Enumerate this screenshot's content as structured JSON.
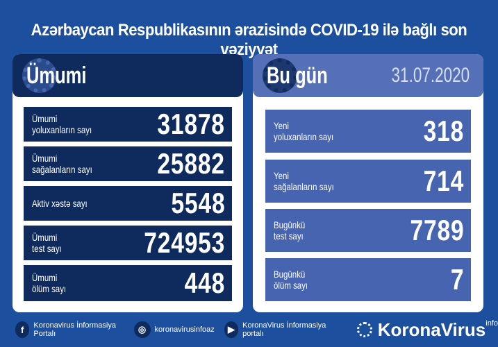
{
  "title": "Azərbaycan Respublikasının ərazisində COVID-19 ilə bağlı son vəziyyət",
  "total": {
    "heading": "Ümumi",
    "rows": [
      {
        "label": "Ümumi\nyoluxanların sayı",
        "value": "31878"
      },
      {
        "label": "Ümumi\nsağalanların sayı",
        "value": "25882"
      },
      {
        "label": "Aktiv xəstə sayı",
        "value": "5548"
      },
      {
        "label": "Ümumi\ntest sayı",
        "value": "724953"
      },
      {
        "label": "Ümumi\nölüm sayı",
        "value": "448"
      }
    ]
  },
  "today": {
    "heading": "Bu gün",
    "date": "31.07.2020",
    "rows": [
      {
        "label": "Yeni\nyoluxanların sayı",
        "value": "318"
      },
      {
        "label": "Yeni\nsağalanların sayı",
        "value": "714"
      },
      {
        "label": "Bugünkü\ntest sayı",
        "value": "7789"
      },
      {
        "label": "Bugünkü\nölüm sayı",
        "value": "7"
      }
    ]
  },
  "footer": {
    "facebook": "Koronavirus İnformasiya Portalı",
    "instagram": "koronavirusinfoaz",
    "youtube": "KoronaVirus İnformasiya portalı",
    "logo": "KoronaVirus",
    "logo_sup": "info"
  },
  "colors": {
    "background": "#1d4f9f",
    "dark": "#0f2a5c",
    "light": "#5670b8"
  }
}
